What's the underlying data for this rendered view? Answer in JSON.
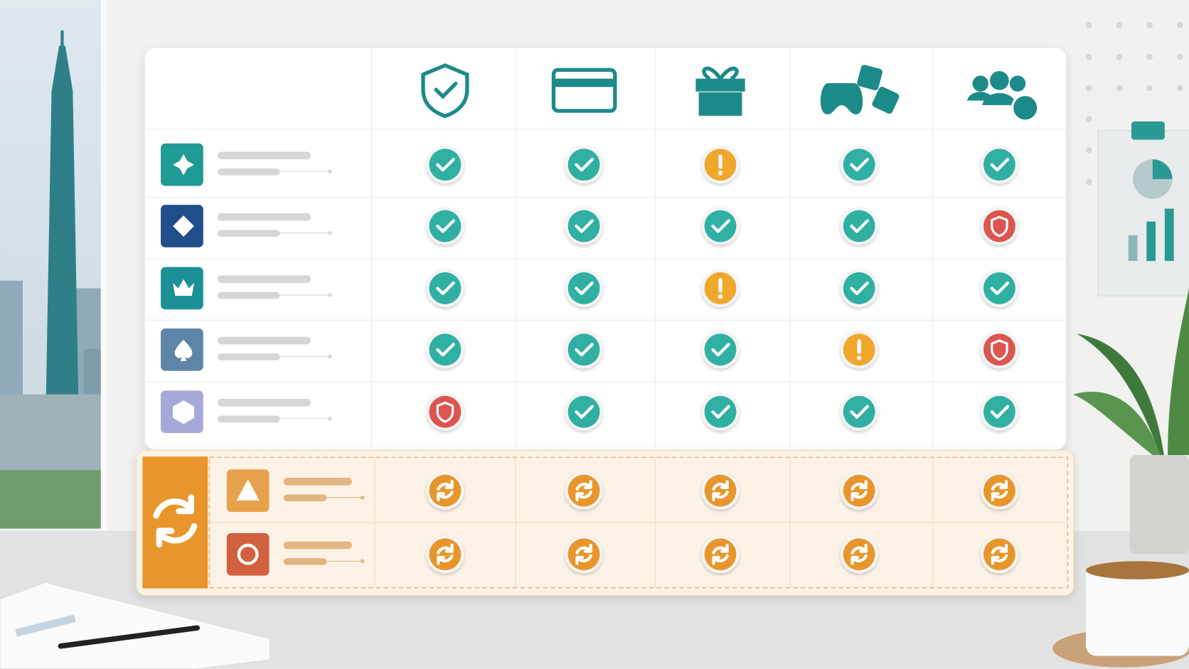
{
  "header_icon_color": "#1d8a8a",
  "rows": [
    {
      "icon_color": "#1f9a94",
      "cells": [
        "#2fb0a3",
        "#2fb0a3",
        "#f0a72c",
        "#2fb0a3",
        "#2fb0a3"
      ]
    },
    {
      "icon_color": "#1f4e8a",
      "cells": [
        "#2fb0a3",
        "#2fb0a3",
        "#2fb0a3",
        "#2fb0a3",
        "#dc5550"
      ]
    },
    {
      "icon_color": "#1b9096",
      "cells": [
        "#2fb0a3",
        "#2fb0a3",
        "#f0a72c",
        "#2fb0a3",
        "#2fb0a3"
      ]
    },
    {
      "icon_color": "#5d85a8",
      "cells": [
        "#2fb0a3",
        "#2fb0a3",
        "#2fb0a3",
        "#f0a72c",
        "#dc5550"
      ]
    },
    {
      "icon_color": "#a6a9d8",
      "cells": [
        "#dc5550",
        "#2fb0a3",
        "#2fb0a3",
        "#2fb0a3",
        "#2fb0a3"
      ]
    }
  ],
  "pending_color": "#e8962b",
  "pending_rows": [
    {
      "icon_color": "#e8a14c",
      "cells": [
        "#e8962b",
        "#e8962b",
        "#e8962b",
        "#e8962b",
        "#e8962b"
      ]
    },
    {
      "icon_color": "#d2603f",
      "cells": [
        "#e8962b",
        "#e8962b",
        "#e8962b",
        "#e8962b",
        "#e8962b"
      ]
    }
  ]
}
